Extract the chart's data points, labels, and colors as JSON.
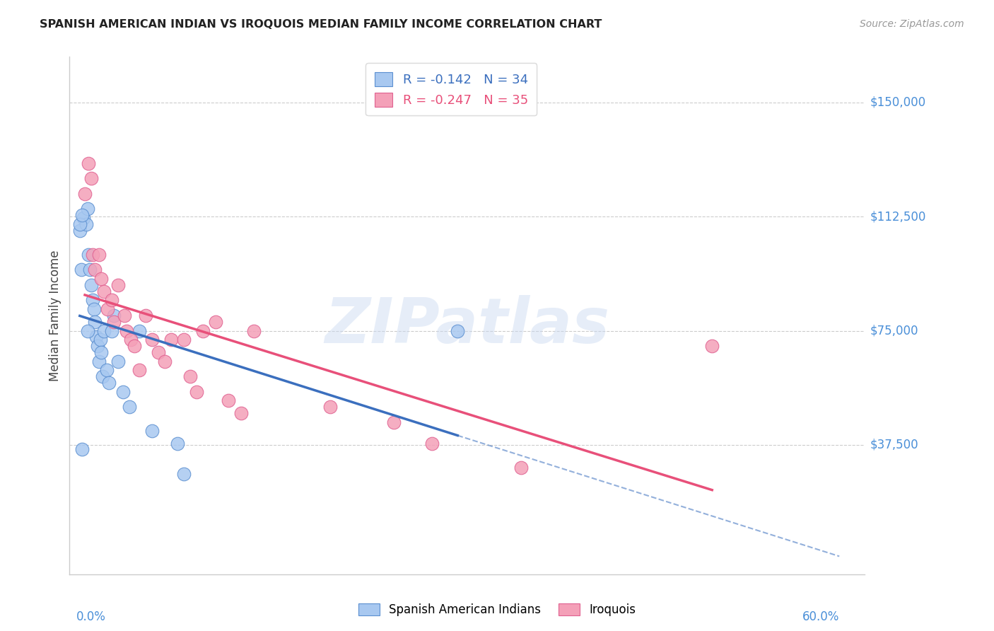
{
  "title": "SPANISH AMERICAN INDIAN VS IROQUOIS MEDIAN FAMILY INCOME CORRELATION CHART",
  "source": "Source: ZipAtlas.com",
  "ylabel": "Median Family Income",
  "ytick_values": [
    150000,
    112500,
    75000,
    37500
  ],
  "ytick_labels": [
    "$150,000",
    "$112,500",
    "$75,000",
    "$37,500"
  ],
  "ylim": [
    -5000,
    165000
  ],
  "xlim": [
    -0.005,
    0.62
  ],
  "xmin": 0.0,
  "xmax": 0.6,
  "r_blue": -0.142,
  "n_blue": 34,
  "r_pink": -0.247,
  "n_pink": 35,
  "legend_label_blue": "Spanish American Indians",
  "legend_label_pink": "Iroquois",
  "watermark": "ZIPatlas",
  "blue_fill": "#A8C8F0",
  "pink_fill": "#F4A0B8",
  "blue_edge": "#5B8FD0",
  "pink_edge": "#E06090",
  "blue_line": "#3B6FBE",
  "pink_line": "#E8507A",
  "grid_color": "#CCCCCC",
  "blue_x": [
    0.003,
    0.004,
    0.006,
    0.008,
    0.009,
    0.01,
    0.011,
    0.012,
    0.013,
    0.014,
    0.015,
    0.016,
    0.017,
    0.018,
    0.019,
    0.02,
    0.021,
    0.022,
    0.024,
    0.026,
    0.028,
    0.03,
    0.033,
    0.037,
    0.042,
    0.05,
    0.06,
    0.08,
    0.085,
    0.003,
    0.005,
    0.009,
    0.3,
    0.005
  ],
  "blue_y": [
    108000,
    95000,
    112000,
    110000,
    115000,
    100000,
    95000,
    90000,
    85000,
    82000,
    78000,
    73000,
    70000,
    65000,
    72000,
    68000,
    60000,
    75000,
    62000,
    58000,
    75000,
    80000,
    65000,
    55000,
    50000,
    75000,
    42000,
    38000,
    28000,
    110000,
    36000,
    75000,
    75000,
    113000
  ],
  "pink_x": [
    0.007,
    0.01,
    0.013,
    0.015,
    0.018,
    0.02,
    0.022,
    0.025,
    0.028,
    0.03,
    0.033,
    0.038,
    0.04,
    0.043,
    0.046,
    0.05,
    0.055,
    0.06,
    0.065,
    0.07,
    0.075,
    0.085,
    0.09,
    0.095,
    0.1,
    0.11,
    0.12,
    0.13,
    0.14,
    0.2,
    0.25,
    0.28,
    0.35,
    0.5,
    0.012
  ],
  "pink_y": [
    120000,
    130000,
    100000,
    95000,
    100000,
    92000,
    88000,
    82000,
    85000,
    78000,
    90000,
    80000,
    75000,
    72000,
    70000,
    62000,
    80000,
    72000,
    68000,
    65000,
    72000,
    72000,
    60000,
    55000,
    75000,
    78000,
    52000,
    48000,
    75000,
    50000,
    45000,
    38000,
    30000,
    70000,
    125000
  ]
}
